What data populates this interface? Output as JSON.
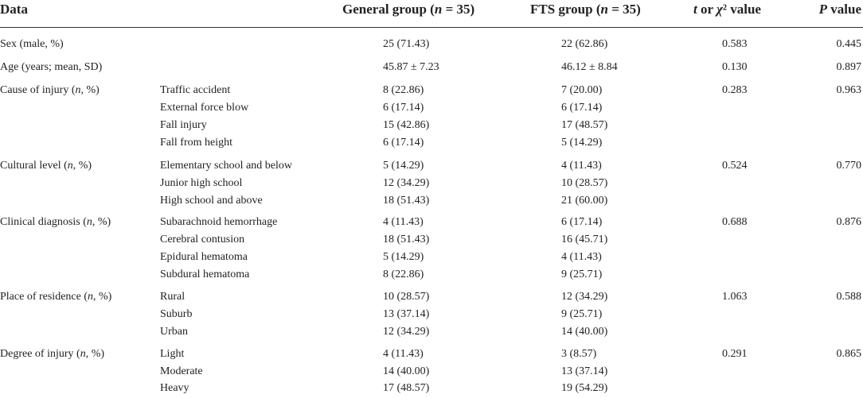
{
  "header": {
    "data": "Data",
    "general_group": "General group (n = 35)",
    "fts_group": "FTS group (n = 35)",
    "t_chi": "t or χ² value",
    "p_value": "P value"
  },
  "rows": [
    {
      "label": "Sex (male, %)",
      "sub": "",
      "general": "25 (71.43)",
      "fts": "22 (62.86)",
      "t": "0.583",
      "p": "0.445"
    },
    {
      "label": "Age (years; mean, SD)",
      "sub": "",
      "general": "45.87 ± 7.23",
      "fts": "46.12 ± 8.84",
      "t": "0.130",
      "p": "0.897"
    },
    {
      "label": "Cause of injury (n, %)",
      "sub": "Traffic accident",
      "general": "8 (22.86)",
      "fts": "7 (20.00)",
      "t": "0.283",
      "p": "0.963"
    },
    {
      "label": "",
      "sub": "External force blow",
      "general": "6 (17.14)",
      "fts": "6 (17.14)",
      "t": "",
      "p": ""
    },
    {
      "label": "",
      "sub": "Fall injury",
      "general": "15 (42.86)",
      "fts": "17 (48.57)",
      "t": "",
      "p": ""
    },
    {
      "label": "",
      "sub": "Fall from height",
      "general": "6 (17.14)",
      "fts": "5 (14.29)",
      "t": "",
      "p": ""
    },
    {
      "label": "Cultural level (n, %)",
      "sub": "Elementary school and below",
      "general": "5 (14.29)",
      "fts": "4 (11.43)",
      "t": "0.524",
      "p": "0.770"
    },
    {
      "label": "",
      "sub": "Junior high school",
      "general": "12 (34.29)",
      "fts": "10 (28.57)",
      "t": "",
      "p": ""
    },
    {
      "label": "",
      "sub": "High school and above",
      "general": "18 (51.43)",
      "fts": "21 (60.00)",
      "t": "",
      "p": ""
    },
    {
      "label": "Clinical diagnosis (n, %)",
      "sub": "Subarachnoid hemorrhage",
      "general": "4 (11.43)",
      "fts": "6 (17.14)",
      "t": "0.688",
      "p": "0.876"
    },
    {
      "label": "",
      "sub": "Cerebral contusion",
      "general": "18 (51.43)",
      "fts": "16 (45.71)",
      "t": "",
      "p": ""
    },
    {
      "label": "",
      "sub": "Epidural hematoma",
      "general": "5 (14.29)",
      "fts": "4 (11.43)",
      "t": "",
      "p": ""
    },
    {
      "label": "",
      "sub": "Subdural hematoma",
      "general": "8 (22.86)",
      "fts": "9 (25.71)",
      "t": "",
      "p": ""
    },
    {
      "label": "Place of residence (n, %)",
      "sub": "Rural",
      "general": "10 (28.57)",
      "fts": "12 (34.29)",
      "t": "1.063",
      "p": "0.588"
    },
    {
      "label": "",
      "sub": "Suburb",
      "general": "13 (37.14)",
      "fts": "9 (25.71)",
      "t": "",
      "p": ""
    },
    {
      "label": "",
      "sub": "Urban",
      "general": "12 (34.29)",
      "fts": "14 (40.00)",
      "t": "",
      "p": ""
    },
    {
      "label": "Degree of injury (n, %)",
      "sub": "Light",
      "general": "4 (11.43)",
      "fts": "3 (8.57)",
      "t": "0.291",
      "p": "0.865"
    },
    {
      "label": "",
      "sub": "Moderate",
      "general": "14 (40.00)",
      "fts": "13 (37.14)",
      "t": "",
      "p": ""
    },
    {
      "label": "",
      "sub": "Heavy",
      "general": "17 (48.57)",
      "fts": "19 (54.29)",
      "t": "",
      "p": ""
    }
  ]
}
